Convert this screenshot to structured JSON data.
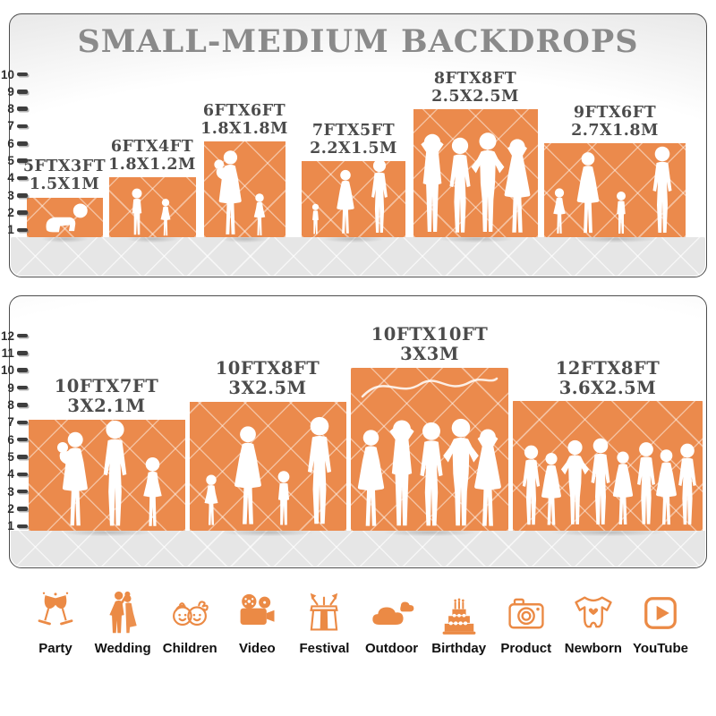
{
  "title": "SMALL-MEDIUM BACKDROPS",
  "colors": {
    "backdrop_orange": "#EB8A4C",
    "icon_orange": "#EB8A45",
    "title_gray": "#8A8A8A",
    "label_gray": "#4B4B4B",
    "panel_border": "#4D4D4D",
    "floor_gray": "#E6E6E6"
  },
  "panels": [
    {
      "name": "top-panel",
      "ruler": [
        "10",
        "9",
        "8",
        "7",
        "6",
        "5",
        "4",
        "3",
        "2",
        "1"
      ],
      "backdrops": [
        {
          "size_ft": "5FTX3FT",
          "size_m": "1.5X1M",
          "figures": "crawling-baby"
        },
        {
          "size_ft": "6FTX4FT",
          "size_m": "1.8X1.2M",
          "figures": "two-children"
        },
        {
          "size_ft": "6FTX6FT",
          "size_m": "1.8X1.8M",
          "figures": "mother-holding-baby-and-girl"
        },
        {
          "size_ft": "7FTX5FT",
          "size_m": "2.2X1.5M",
          "figures": "toddler-woman-man"
        },
        {
          "size_ft": "8FTX8FT",
          "size_m": "2.5X2.5M",
          "figures": "four-adults-posing"
        },
        {
          "size_ft": "9FTX6FT",
          "size_m": "2.7X1.8M",
          "figures": "family-of-four-holding-hands"
        }
      ]
    },
    {
      "name": "bottom-panel",
      "ruler": [
        "12",
        "11",
        "10",
        "9",
        "8",
        "7",
        "6",
        "5",
        "4",
        "3",
        "2",
        "1"
      ],
      "backdrops": [
        {
          "size_ft": "10FTX7FT",
          "size_m": "3X2.1M",
          "figures": "family-of-three"
        },
        {
          "size_ft": "10FTX8FT",
          "size_m": "3X2.5M",
          "figures": "family-of-four-holding-hands"
        },
        {
          "size_ft": "10FTX10FT",
          "size_m": "3X3M",
          "figures": "five-adults-posing"
        },
        {
          "size_ft": "12FTX8FT",
          "size_m": "3.6X2.5M",
          "figures": "group-of-eight-adults"
        }
      ]
    }
  ],
  "categories": [
    {
      "label": "Party",
      "icon": "party-icon"
    },
    {
      "label": "Wedding",
      "icon": "wedding-icon"
    },
    {
      "label": "Children",
      "icon": "children-icon"
    },
    {
      "label": "Video",
      "icon": "video-icon"
    },
    {
      "label": "Festival",
      "icon": "festival-icon"
    },
    {
      "label": "Outdoor",
      "icon": "outdoor-icon"
    },
    {
      "label": "Birthday",
      "icon": "birthday-icon"
    },
    {
      "label": "Product",
      "icon": "product-icon"
    },
    {
      "label": "Newborn",
      "icon": "newborn-icon"
    },
    {
      "label": "YouTube",
      "icon": "youtube-icon"
    }
  ]
}
